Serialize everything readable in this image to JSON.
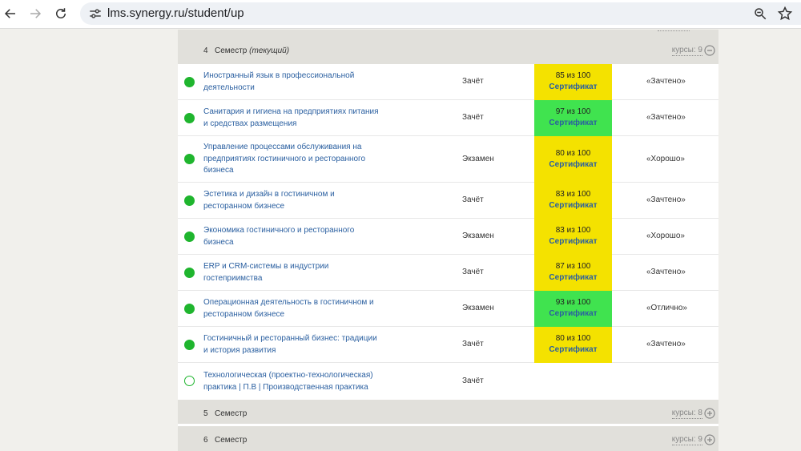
{
  "browser": {
    "url": "lms.synergy.ru/student/up",
    "icons": [
      "back-arrow-icon",
      "forward-arrow-icon",
      "reload-icon",
      "site-settings-icon",
      "zoom-icon",
      "star-icon"
    ]
  },
  "semesters": [
    {
      "num": "4",
      "label": "Семестр",
      "current_note": "(текущий)",
      "courses_label": "курсы: 9",
      "toggle": "collapse-icon"
    },
    {
      "num": "5",
      "label": "Семестр",
      "current_note": "",
      "courses_label": "курсы: 8",
      "toggle": "expand-icon"
    },
    {
      "num": "6",
      "label": "Семестр",
      "current_note": "",
      "courses_label": "курсы: 9",
      "toggle": "expand-icon"
    }
  ],
  "courses": [
    {
      "status": "done",
      "name": "Иностранный язык в профессиональной деятельности",
      "type": "Зачёт",
      "score": "85 из 100",
      "cert": "Сертификат",
      "score_color": "#f4e200",
      "grade": "«Зачтено»"
    },
    {
      "status": "done",
      "name": "Санитария и гигиена на предприятиях питания и средствах размещения",
      "type": "Зачёт",
      "score": "97 из 100",
      "cert": "Сертификат",
      "score_color": "#40e34f",
      "grade": "«Зачтено»"
    },
    {
      "status": "done",
      "name": "Управление процессами обслуживания на предприятиях гостиничного и ресторанного бизнеса",
      "type": "Экзамен",
      "score": "80 из 100",
      "cert": "Сертификат",
      "score_color": "#f4e200",
      "grade": "«Хорошо»"
    },
    {
      "status": "done",
      "name": "Эстетика и дизайн в гостиничном и ресторанном бизнесе",
      "type": "Зачёт",
      "score": "83 из 100",
      "cert": "Сертификат",
      "score_color": "#f4e200",
      "grade": "«Зачтено»"
    },
    {
      "status": "done",
      "name": "Экономика гостиничного и ресторанного бизнеса",
      "type": "Экзамен",
      "score": "83 из 100",
      "cert": "Сертификат",
      "score_color": "#f4e200",
      "grade": "«Хорошо»"
    },
    {
      "status": "done",
      "name": "ERP и CRM-системы в индустрии гостеприимства",
      "type": "Зачёт",
      "score": "87 из 100",
      "cert": "Сертификат",
      "score_color": "#f4e200",
      "grade": "«Зачтено»"
    },
    {
      "status": "done",
      "name": "Операционная деятельность в гостиничном и ресторанном бизнесе",
      "type": "Экзамен",
      "score": "93 из 100",
      "cert": "Сертификат",
      "score_color": "#40e34f",
      "grade": "«Отлично»"
    },
    {
      "status": "done",
      "name": "Гостиничный и ресторанный бизнес: традиции и история развития",
      "type": "Зачёт",
      "score": "80 из 100",
      "cert": "Сертификат",
      "score_color": "#f4e200",
      "grade": "«Зачтено»"
    },
    {
      "status": "open",
      "name": "Технологическая (проектно-технологическая) практика | П.В | Производственная практика",
      "type": "Зачёт",
      "score": "",
      "cert": "",
      "score_color": "",
      "grade": ""
    }
  ]
}
